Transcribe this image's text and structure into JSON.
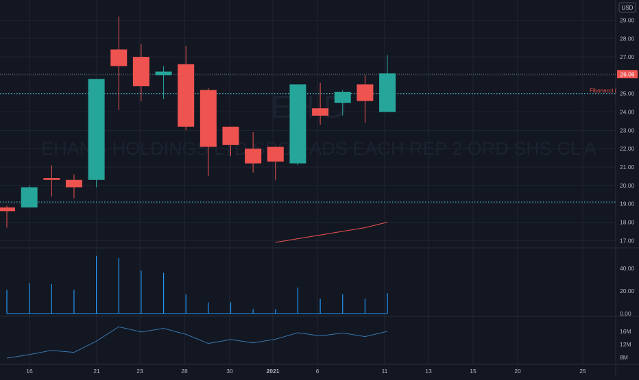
{
  "currency_label": "USD",
  "watermark": {
    "symbol": "EH  D",
    "description": "EHANG HOLDINGS LTD   SPON ADS EACH REP 2 ORD SHS CL A"
  },
  "fib_label": "Fibonacci (",
  "colors": {
    "background": "#131722",
    "grid": "#1f2433",
    "up": "#26a69a",
    "down": "#ef5350",
    "volume": "#2196f3",
    "oscillator": "#3a78b0",
    "ma_line": "#ef5350",
    "dotted_line": "#4dd0e1",
    "axis_text": "#b2b5be",
    "price_badge_bg": "#ef5350"
  },
  "chart_data": {
    "type": "candlestick",
    "x_ticks": [
      "16",
      "21",
      "23",
      "28",
      "30",
      "2021",
      "6",
      "11",
      "13",
      "15",
      "20",
      "25"
    ],
    "price_axis": {
      "ticks": [
        "17.00",
        "18.00",
        "19.00",
        "20.00",
        "21.00",
        "22.00",
        "23.00",
        "24.00",
        "25.00",
        "26.00",
        "27.00",
        "28.00",
        "29.00"
      ],
      "range": [
        16.6,
        29.8
      ]
    },
    "last_price": "26.06",
    "horizontal_lines": [
      {
        "value": 26.06,
        "style": "dotted-grey"
      },
      {
        "value": 25.0,
        "style": "dotted-cyan"
      },
      {
        "value": 19.1,
        "style": "dotted-cyan"
      }
    ],
    "candles": [
      {
        "x": 0,
        "open": 18.8,
        "high": 18.9,
        "low": 17.7,
        "close": 18.6
      },
      {
        "x": 1,
        "open": 18.8,
        "high": 20.0,
        "low": 18.8,
        "close": 19.9
      },
      {
        "x": 2,
        "open": 20.4,
        "high": 21.1,
        "low": 19.4,
        "close": 20.3
      },
      {
        "x": 3,
        "open": 20.3,
        "high": 20.6,
        "low": 19.3,
        "close": 19.9
      },
      {
        "x": 4,
        "open": 20.3,
        "high": 25.8,
        "low": 19.9,
        "close": 25.8
      },
      {
        "x": 5,
        "open": 27.4,
        "high": 29.2,
        "low": 24.1,
        "close": 26.5
      },
      {
        "x": 6,
        "open": 27.0,
        "high": 27.7,
        "low": 24.6,
        "close": 25.4
      },
      {
        "x": 7,
        "open": 26.0,
        "high": 26.5,
        "low": 24.7,
        "close": 26.2
      },
      {
        "x": 8,
        "open": 26.6,
        "high": 27.6,
        "low": 23.0,
        "close": 23.2
      },
      {
        "x": 9,
        "open": 25.2,
        "high": 25.3,
        "low": 20.5,
        "close": 22.1
      },
      {
        "x": 10,
        "open": 23.2,
        "high": 23.2,
        "low": 21.6,
        "close": 22.2
      },
      {
        "x": 11,
        "open": 22.0,
        "high": 22.9,
        "low": 20.7,
        "close": 21.2
      },
      {
        "x": 12,
        "open": 22.1,
        "high": 22.1,
        "low": 20.3,
        "close": 21.3
      },
      {
        "x": 13,
        "open": 21.2,
        "high": 25.5,
        "low": 21.1,
        "close": 25.5
      },
      {
        "x": 14,
        "open": 24.2,
        "high": 25.6,
        "low": 23.3,
        "close": 23.8
      },
      {
        "x": 15,
        "open": 24.5,
        "high": 25.2,
        "low": 23.8,
        "close": 25.1
      },
      {
        "x": 16,
        "open": 25.5,
        "high": 26.0,
        "low": 23.4,
        "close": 24.6
      },
      {
        "x": 17,
        "open": 24.0,
        "high": 27.1,
        "low": 24.0,
        "close": 26.1
      }
    ],
    "ma_line": [
      {
        "x": 12,
        "y": 16.9
      },
      {
        "x": 13,
        "y": 17.1
      },
      {
        "x": 14,
        "y": 17.3
      },
      {
        "x": 15,
        "y": 17.5
      },
      {
        "x": 16,
        "y": 17.7
      },
      {
        "x": 17,
        "y": 18.0
      }
    ],
    "volume": {
      "ticks": [
        "0.00",
        "20.00",
        "40.00"
      ],
      "range": [
        0,
        52
      ],
      "values": [
        21,
        27,
        26,
        21,
        51,
        49,
        38,
        36,
        17,
        10,
        10,
        4,
        4,
        23,
        13,
        17,
        13,
        18
      ]
    },
    "oscillator": {
      "ticks": [
        "8M",
        "12M",
        "16M"
      ],
      "range": [
        7,
        18.5
      ],
      "values": [
        7.8,
        8.9,
        10.2,
        9.6,
        13.0,
        17.4,
        15.8,
        16.9,
        15.1,
        12.3,
        13.5,
        12.5,
        13.6,
        15.6,
        14.6,
        15.5,
        14.4,
        16.0
      ]
    }
  }
}
